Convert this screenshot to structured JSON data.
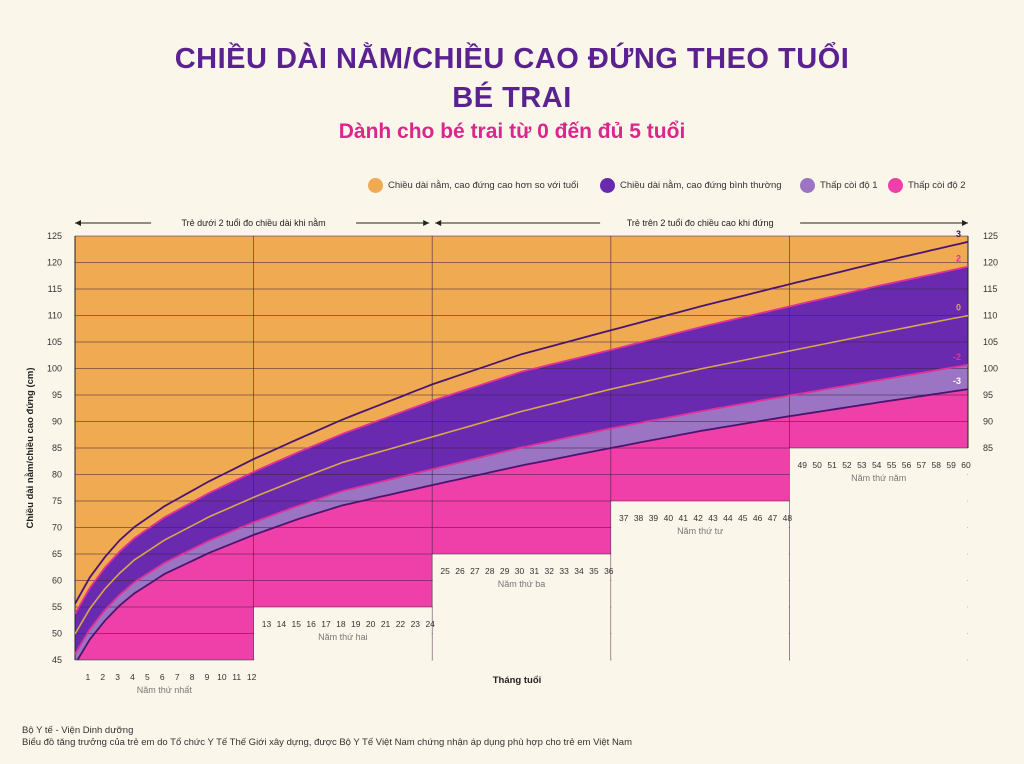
{
  "page": {
    "title_line1": "CHIỀU DÀI NẰM/CHIỀU CAO ĐỨNG THEO TUỔI",
    "title_line2": "BÉ TRAI",
    "subtitle": "Dành cho bé trai từ 0 đến đủ 5 tuổi",
    "footer_line1": "Bộ Y tế - Viện Dinh dưỡng",
    "footer_line2": "Biểu đồ tăng trưởng của trẻ em do Tổ chức Y Tế Thế Giới xây dựng, được Bộ Y Tế Việt Nam chứng nhận áp dụng phù hợp cho trẻ em Việt Nam"
  },
  "colors": {
    "tall": "#efaa52",
    "normal": "#6a2ab0",
    "stunted1": "#9c74c4",
    "stunted2": "#ef3fa8",
    "median_line": "#d6a84a",
    "outer_line": "#4a1570",
    "inner_line": "#e0309a"
  },
  "chart_data": {
    "type": "area",
    "xlabel": "Tháng tuổi",
    "ylabel": "Chiều dài nằm/chiều cao đứng (cm)",
    "xlim": [
      0,
      60
    ],
    "ylim": [
      45,
      125
    ],
    "y_ticks": [
      45,
      50,
      55,
      60,
      65,
      70,
      75,
      80,
      85,
      90,
      95,
      100,
      105,
      110,
      115,
      120,
      125
    ],
    "y_ticks_right": [
      85,
      90,
      95,
      100,
      105,
      110,
      115,
      120,
      125
    ],
    "x_ticks": [
      1,
      2,
      3,
      4,
      5,
      6,
      7,
      8,
      9,
      10,
      11,
      12,
      13,
      14,
      15,
      16,
      17,
      18,
      19,
      20,
      21,
      22,
      23,
      24,
      25,
      26,
      27,
      28,
      29,
      30,
      31,
      32,
      33,
      34,
      35,
      36,
      37,
      38,
      39,
      40,
      41,
      42,
      43,
      44,
      45,
      46,
      47,
      48,
      49,
      50,
      51,
      52,
      53,
      54,
      55,
      56,
      57,
      58,
      59,
      60
    ],
    "year_labels": [
      "Năm thứ nhất",
      "Năm thứ hai",
      "Năm thứ ba",
      "Năm thứ tư",
      "Năm thứ năm"
    ],
    "period_labels": [
      "Trẻ dưới 2 tuổi đo chiều dài khi nằm",
      "Trẻ trên 2 tuổi đo chiều cao khi đứng"
    ],
    "legend": [
      {
        "label": "Chiều dài nằm, cao đứng cao hơn so với tuổi",
        "color": "#efaa52"
      },
      {
        "label": "Chiều dài nằm, cao đứng bình thường",
        "color": "#6a2ab0"
      },
      {
        "label": "Thấp còi độ 1",
        "color": "#9c74c4"
      },
      {
        "label": "Thấp còi độ 2",
        "color": "#ef3fa8"
      }
    ],
    "x": [
      0,
      1,
      2,
      3,
      4,
      6,
      9,
      12,
      15,
      18,
      24,
      30,
      36,
      42,
      48,
      54,
      60
    ],
    "series": [
      {
        "name": "3",
        "values": [
          55.6,
          60.6,
          64.4,
          67.6,
          70.1,
          74.0,
          78.7,
          82.9,
          86.7,
          90.4,
          97.0,
          102.7,
          107.2,
          111.7,
          115.9,
          120.0,
          123.9
        ]
      },
      {
        "name": "2",
        "values": [
          53.7,
          58.6,
          62.4,
          65.5,
          68.0,
          71.9,
          76.5,
          80.5,
          84.2,
          87.7,
          93.9,
          99.4,
          103.5,
          107.8,
          111.7,
          115.6,
          119.2
        ]
      },
      {
        "name": "0",
        "values": [
          49.9,
          54.7,
          58.4,
          61.4,
          63.9,
          67.6,
          72.0,
          75.7,
          79.1,
          82.3,
          87.1,
          91.9,
          96.1,
          99.9,
          103.3,
          106.7,
          110.0
        ]
      },
      {
        "name": "-2",
        "values": [
          46.1,
          50.8,
          54.4,
          57.3,
          59.7,
          63.3,
          67.5,
          71.0,
          74.1,
          76.9,
          81.0,
          85.1,
          88.7,
          91.9,
          94.9,
          97.8,
          100.7
        ]
      },
      {
        "name": "-3",
        "values": [
          44.2,
          48.9,
          52.4,
          55.3,
          57.6,
          61.2,
          65.2,
          68.6,
          71.6,
          74.2,
          78.0,
          81.7,
          85.0,
          88.2,
          91.0,
          93.6,
          96.1
        ]
      }
    ],
    "curve_labels": [
      "3",
      "2",
      "0",
      "-2",
      "-3"
    ]
  }
}
